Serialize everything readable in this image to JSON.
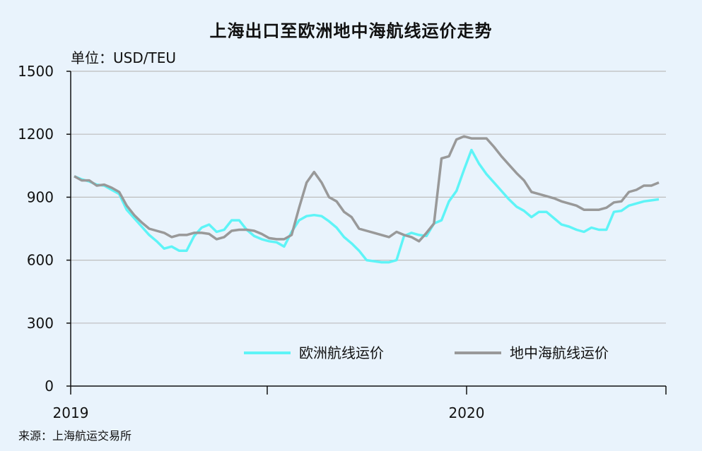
{
  "chart_data": {
    "type": "line",
    "title": "上海出口至欧洲地中海航线运价走势",
    "unit": "单位：USD/TEU",
    "source": "来源：上海航运交易所",
    "ylim": [
      0,
      1500
    ],
    "yticks": [
      "0",
      "300",
      "600",
      "900",
      "1200",
      "1500"
    ],
    "xlabels": [
      "2019",
      "2020"
    ],
    "grid": "horizontal",
    "legend": "bottom-center inside plot",
    "series": [
      {
        "name": "欧洲航线运价",
        "color": "#5ef4f7",
        "values": [
          1000,
          985,
          975,
          960,
          955,
          935,
          915,
          840,
          800,
          760,
          720,
          690,
          655,
          665,
          645,
          645,
          715,
          755,
          770,
          735,
          745,
          790,
          790,
          745,
          715,
          700,
          690,
          685,
          665,
          735,
          790,
          810,
          815,
          810,
          785,
          755,
          710,
          680,
          645,
          600,
          595,
          590,
          590,
          600,
          715,
          730,
          720,
          715,
          775,
          790,
          880,
          930,
          1030,
          1125,
          1060,
          1010,
          970,
          930,
          890,
          855,
          835,
          805,
          830,
          830,
          800,
          770,
          760,
          745,
          735,
          755,
          745,
          745,
          830,
          835,
          860,
          870,
          880,
          885,
          890
        ]
      },
      {
        "name": "地中海航线运价",
        "color": "#999999",
        "values": [
          1000,
          980,
          980,
          955,
          960,
          945,
          925,
          860,
          815,
          780,
          750,
          740,
          730,
          710,
          720,
          720,
          730,
          730,
          725,
          700,
          710,
          740,
          745,
          745,
          740,
          725,
          705,
          700,
          700,
          720,
          850,
          970,
          1020,
          970,
          900,
          880,
          830,
          805,
          750,
          740,
          730,
          720,
          710,
          735,
          720,
          710,
          690,
          730,
          775,
          1085,
          1095,
          1175,
          1190,
          1180,
          1180,
          1180,
          1140,
          1095,
          1055,
          1015,
          980,
          925,
          915,
          905,
          895,
          880,
          870,
          860,
          840,
          840,
          840,
          850,
          875,
          880,
          925,
          935,
          955,
          955,
          970
        ]
      }
    ]
  }
}
